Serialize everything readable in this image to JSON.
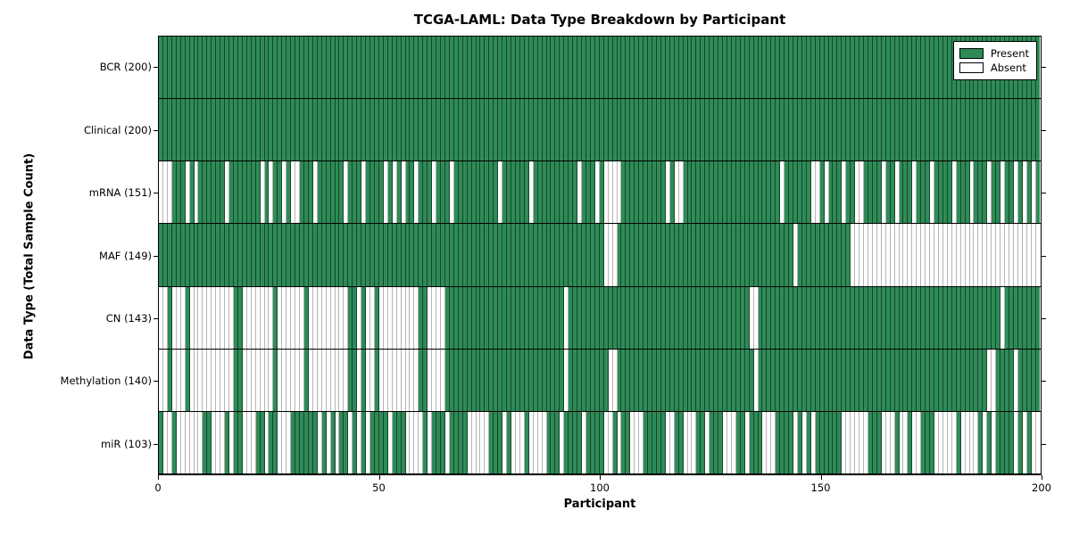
{
  "chart_data": {
    "type": "heatmap",
    "title": "TCGA-LAML: Data Type Breakdown by Participant",
    "xlabel": "Participant",
    "ylabel": "Data Type (Total Sample Count)",
    "x_range": [
      0,
      200
    ],
    "x_ticks": [
      0,
      50,
      100,
      150,
      200
    ],
    "n_participants": 200,
    "grid": "row-separators",
    "legend": {
      "position": "upper right",
      "entries": [
        {
          "label": "Present",
          "color": "#2e8b57"
        },
        {
          "label": "Absent",
          "color": "#ffffff"
        }
      ]
    },
    "colors": {
      "present": "#2e8b57",
      "absent": "#ffffff",
      "frame": "#000000"
    },
    "rows": [
      {
        "data_type": "BCR",
        "label": "BCR (200)",
        "present_count": 200,
        "presence_bits": "11111111111111111111111111111111111111111111111111111111111111111111111111111111111111111111111111111111111111111111111111111111111111111111111111111111111111111111111111111111111111111111111111111111"
      },
      {
        "data_type": "Clinical",
        "label": "Clinical (200)",
        "present_count": 200,
        "presence_bits": "11111111111111111111111111111111111111111111111111111111111111111111111111111111111111111111111111111111111111111111111111111111111111111111111111111111111111111111111111111111111111111111111111111111"
      },
      {
        "data_type": "mRNA",
        "label": "mRNA (151)",
        "present_count": 151,
        "presence_bits": "00011101011111101111111010110100111011111101110111101010110111011101111111111011111101111111111011101000011111111110100111111111111111111111101111110010111011001111011011101110111101110111011011010101"
      },
      {
        "data_type": "MAF",
        "label": "MAF (149)",
        "present_count": 149,
        "presence_bits": "11111111111111111111111111111111111111111111111111111111111111111111111111111111111111111111111111111000111111111111111111111111111111111111111101111111111110000000000000000000000000000000000000000000"
      },
      {
        "data_type": "CN",
        "label": "CN (143)",
        "present_count": 143,
        "presence_bits": "00100010000000000110000000100000010000000001101001000000000110000111111111111111111111111111011111111111111111111111111111111111111111001111111111111111111111111111111111111111111111111111111011111111"
      },
      {
        "data_type": "Methylation",
        "label": "Methylation (140)",
        "present_count": 140,
        "presence_bits": "00100010000000000110000000100000010000000001101001000000000110000111111111111111111111111111011111111100111111111111111111111111111111101111111111111111111111111111111111111111111111111111001111011111"
      },
      {
        "data_type": "miR",
        "label": "miR (103)",
        "present_count": 103,
        "presence_bits": "10010000001100010110001101100011111101010110101011110111000010111011110000011101000100001110111101111001011000111110011000110111000110111000111101010111111000000111000100100111000001000010101111010100"
      }
    ]
  }
}
